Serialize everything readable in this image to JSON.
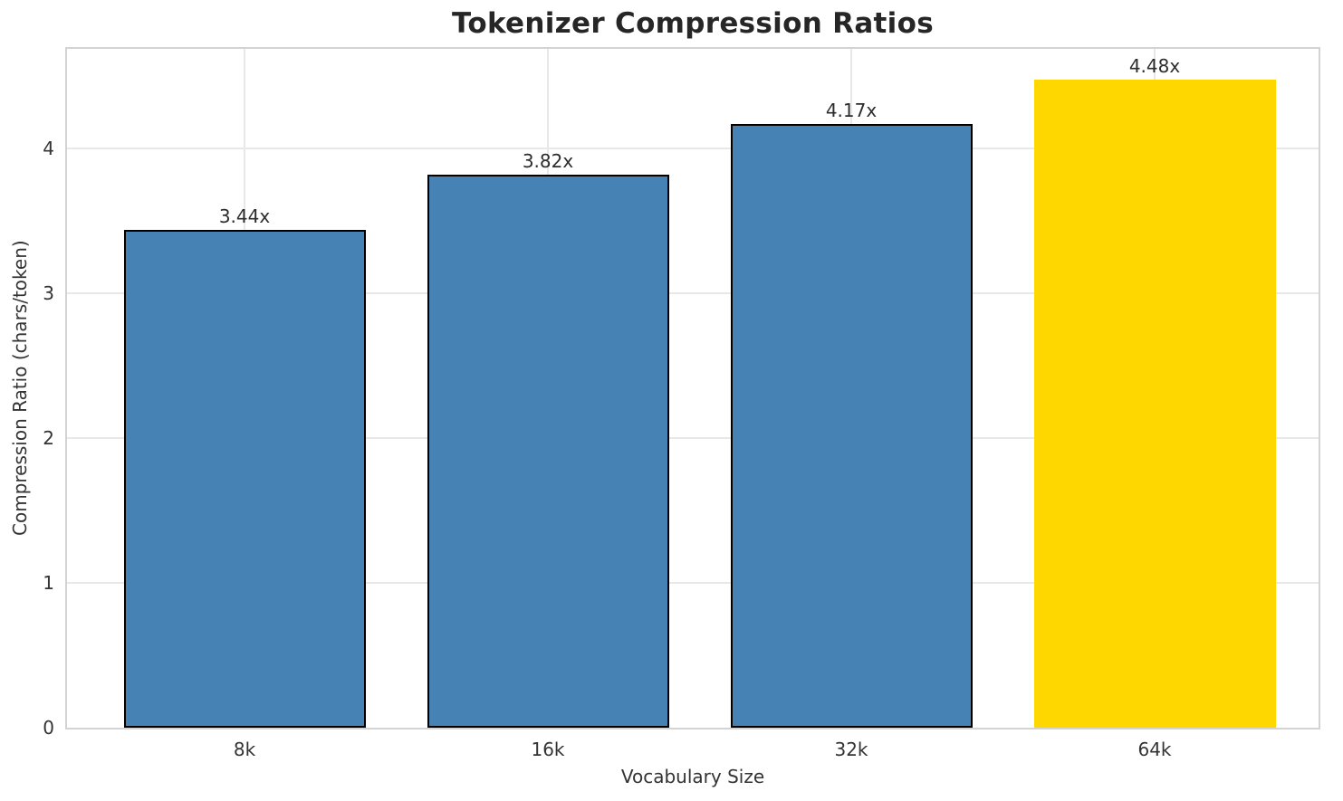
{
  "chart_data": {
    "type": "bar",
    "title": "Tokenizer Compression Ratios",
    "xlabel": "Vocabulary Size",
    "ylabel": "Compression Ratio (chars/token)",
    "categories": [
      "8k",
      "16k",
      "32k",
      "64k"
    ],
    "values": [
      3.44,
      3.82,
      4.17,
      4.48
    ],
    "bar_labels": [
      "3.44x",
      "3.82x",
      "4.17x",
      "4.48x"
    ],
    "yticks": [
      0,
      1,
      2,
      3,
      4
    ],
    "ytick_labels": [
      "0",
      "1",
      "2",
      "3",
      "4"
    ],
    "ylim": [
      0,
      4.69
    ],
    "grid": true,
    "legend": "none",
    "base_color": "#4682b4",
    "highlight_color": "#ffd700",
    "bar_colors": [
      "#4682b4",
      "#4682b4",
      "#4682b4",
      "#ffd700"
    ],
    "bar_edge_colors": [
      "#000000",
      "#000000",
      "#000000",
      "none"
    ],
    "grid_color": "#e8e8e8",
    "spine_color": "#d3d3d3",
    "title_color": "#262626",
    "text_color": "#333333"
  }
}
